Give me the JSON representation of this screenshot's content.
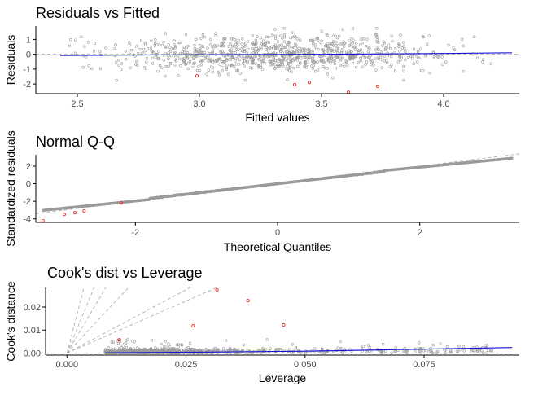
{
  "chart_data": [
    {
      "type": "scatter",
      "title": "Residuals vs Fitted",
      "xlabel": "Fitted values",
      "ylabel": "Residuals",
      "xlim": [
        2.33,
        4.31
      ],
      "ylim": [
        -2.65,
        1.9
      ],
      "xticks": [
        2.5,
        3.0,
        3.5,
        4.0
      ],
      "xtick_labels": [
        "2.5",
        "3.0",
        "3.5",
        "4.0"
      ],
      "yticks": [
        -2,
        -1,
        0,
        1
      ],
      "ytick_labels": [
        "-2",
        "-1",
        "0",
        "1"
      ],
      "cloud": {
        "x_range": [
          2.43,
          4.28
        ],
        "x_center": 3.3,
        "x_spread": 0.32,
        "resid_spread": 0.62,
        "count": 950
      },
      "outliers": [
        {
          "x": 2.99,
          "y": -1.45
        },
        {
          "x": 3.39,
          "y": -2.05
        },
        {
          "x": 3.45,
          "y": -1.9
        },
        {
          "x": 3.61,
          "y": -2.55
        },
        {
          "x": 3.73,
          "y": -2.15
        }
      ],
      "smoother": {
        "x": [
          2.43,
          3.0,
          3.5,
          4.0,
          4.28
        ],
        "y": [
          -0.08,
          -0.03,
          0.0,
          0.05,
          0.1
        ]
      },
      "reference_line": {
        "y": 0
      },
      "grid": false
    },
    {
      "type": "scatter",
      "title": "Normal Q-Q",
      "xlabel": "Theoretical Quantiles",
      "ylabel": "Standardized residuals",
      "xlim": [
        -3.4,
        3.4
      ],
      "ylim": [
        -4.4,
        3.3
      ],
      "xticks": [
        -2,
        0,
        2
      ],
      "xtick_labels": [
        "-2",
        "0",
        "2"
      ],
      "yticks": [
        -4,
        -2,
        0,
        2
      ],
      "ytick_labels": [
        "-4",
        "-2",
        "0",
        "2"
      ],
      "quantile_range": [
        -3.3,
        3.3
      ],
      "count": 950,
      "outliers": [
        {
          "x": -3.3,
          "y": -4.2
        },
        {
          "x": -3.0,
          "y": -3.5
        },
        {
          "x": -2.85,
          "y": -3.3
        },
        {
          "x": -2.72,
          "y": -3.1
        },
        {
          "x": -2.2,
          "y": -2.2
        }
      ],
      "reference_line": {
        "slope": 1,
        "intercept": 0
      },
      "grid": false
    },
    {
      "type": "scatter",
      "title": "Cook's dist vs Leverage",
      "xlabel": "Leverage",
      "ylabel": "Cook's distance",
      "xlim": [
        -0.0045,
        0.095
      ],
      "ylim": [
        -0.0009,
        0.0285
      ],
      "xticks": [
        0.0,
        0.025,
        0.05,
        0.075
      ],
      "xtick_labels": [
        "0.000",
        "0.025",
        "0.050",
        "0.075"
      ],
      "yticks": [
        0.0,
        0.01,
        0.02
      ],
      "ytick_labels": [
        "0.00",
        "0.01",
        "0.02"
      ],
      "cloud": {
        "x_range": [
          0.008,
          0.09
        ],
        "count": 950
      },
      "outliers": [
        {
          "x": 0.011,
          "y": 0.0058
        },
        {
          "x": 0.0265,
          "y": 0.0118
        },
        {
          "x": 0.0315,
          "y": 0.0275
        },
        {
          "x": 0.038,
          "y": 0.0228
        },
        {
          "x": 0.0455,
          "y": 0.0122
        }
      ],
      "smoother": {
        "x": [
          0.008,
          0.03,
          0.05,
          0.07,
          0.0935
        ],
        "y": [
          0.0001,
          0.0004,
          0.0008,
          0.0015,
          0.0024
        ]
      },
      "contour_slopes": [
        1.1,
        2.2,
        3.5,
        5.0,
        8.0
      ],
      "contour_ref": {
        "x": [
          0.0,
          0.0315
        ],
        "y": [
          0.0,
          0.0285
        ]
      },
      "reference_line": {
        "y": 0
      },
      "grid": false
    }
  ]
}
